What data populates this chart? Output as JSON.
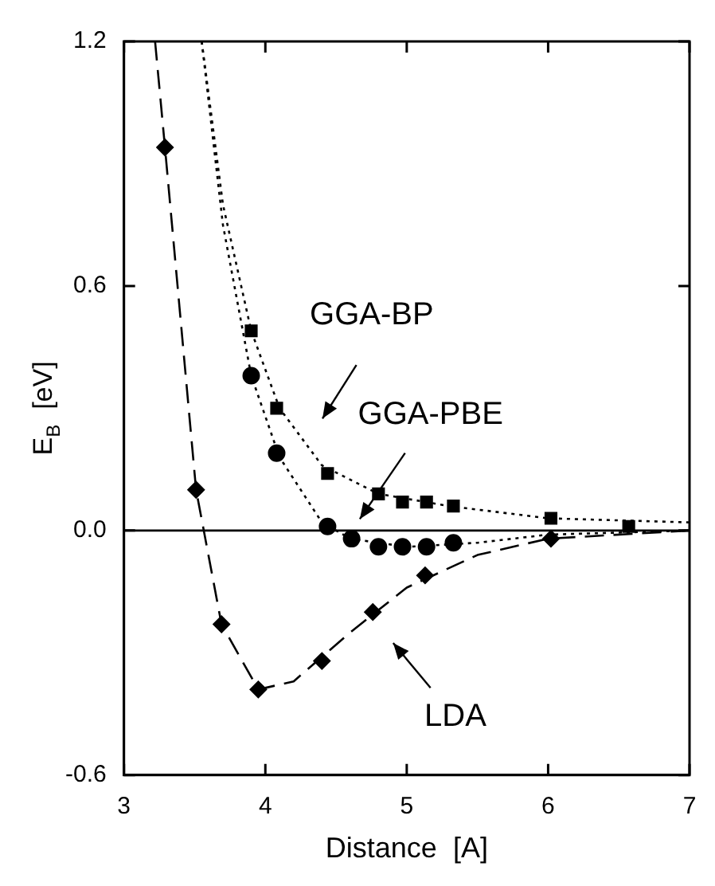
{
  "chart_data": {
    "type": "scatter",
    "xlabel": "Distance  [A]",
    "ylabel": "E$_{B}$  [eV]",
    "xlim": [
      3,
      7
    ],
    "xticks": [
      3,
      4,
      5,
      6,
      7
    ],
    "ylim": [
      -0.6,
      1.2
    ],
    "yticks": [
      {
        "value": -0.6,
        "label": "-0.6"
      },
      {
        "value": 0,
        "label": "0.0"
      },
      {
        "value": 0.6,
        "label": "0.6"
      },
      {
        "value": 1.2,
        "label": "1.2"
      }
    ],
    "grid": false,
    "legend": false,
    "ref_lines": [
      {
        "axis": "y",
        "value": 0,
        "color": "#000000",
        "line_style": "solid"
      }
    ],
    "series": [
      {
        "type": "scatter",
        "marker": "diamond",
        "color": "#000000",
        "x": [
          3.29,
          3.51,
          3.69,
          3.95,
          4.4,
          4.76,
          5.13,
          6.02
        ],
        "values": [
          0.94,
          0.1,
          -0.23,
          -0.39,
          -0.32,
          -0.2,
          -0.11,
          -0.02
        ]
      },
      {
        "type": "scatter",
        "marker": "circle",
        "color": "#000000",
        "x": [
          3.9,
          4.08,
          4.44,
          4.61,
          4.8,
          4.97,
          5.14,
          5.33
        ],
        "values": [
          0.38,
          0.19,
          0.01,
          -0.02,
          -0.04,
          -0.04,
          -0.04,
          -0.03
        ]
      },
      {
        "type": "scatter",
        "marker": "square",
        "color": "#000000",
        "x": [
          3.9,
          4.08,
          4.44,
          4.8,
          4.97,
          5.14,
          5.33,
          6.02,
          6.57
        ],
        "values": [
          0.49,
          0.3,
          0.14,
          0.09,
          0.07,
          0.07,
          0.06,
          0.03,
          0.01
        ]
      },
      {
        "type": "line",
        "line_style": "dashed",
        "color": "#000000",
        "x": [
          3.22,
          3.29,
          3.51,
          3.69,
          3.95,
          4.2,
          4.6,
          5.0,
          5.5,
          6.0,
          7.0
        ],
        "values": [
          1.2,
          0.94,
          0.1,
          -0.23,
          -0.39,
          -0.37,
          -0.25,
          -0.14,
          -0.06,
          -0.02,
          0
        ]
      },
      {
        "type": "line",
        "line_style": "dotted",
        "color": "#000000",
        "x": [
          3.55,
          3.7,
          3.9,
          4.1,
          4.4,
          4.8,
          5.3,
          6.0,
          7.0
        ],
        "values": [
          1.2,
          0.8,
          0.49,
          0.3,
          0.16,
          0.09,
          0.06,
          0.03,
          0.02
        ]
      },
      {
        "type": "line",
        "line_style": "dotted",
        "color": "#000000",
        "x": [
          3.55,
          3.7,
          3.9,
          4.1,
          4.4,
          4.6,
          5.0,
          5.5,
          6.0,
          7.0
        ],
        "values": [
          1.2,
          0.75,
          0.38,
          0.18,
          0.02,
          -0.02,
          -0.04,
          -0.03,
          -0.01,
          0
        ]
      }
    ],
    "annotations": [
      "GGA-BP",
      "GGA-PBE",
      "LDA"
    ]
  }
}
